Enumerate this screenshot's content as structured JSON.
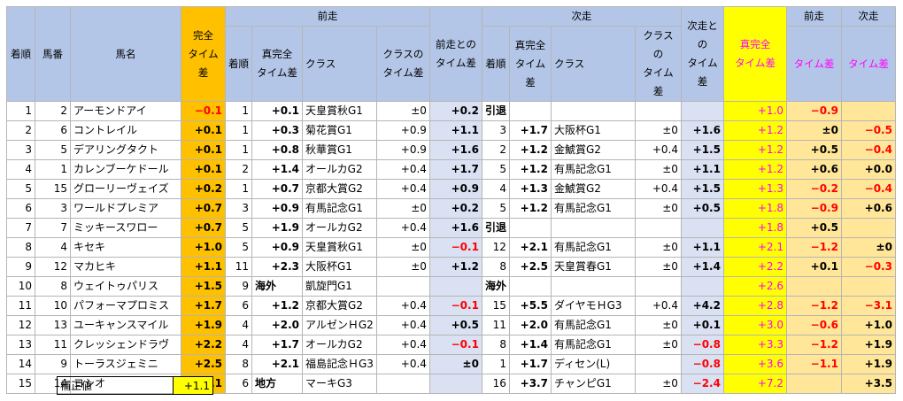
{
  "header": {
    "chakujun": "着順",
    "umaban": "馬番",
    "bamei": "馬名",
    "kanzen": "完全\nタイム差",
    "zenso": "前走",
    "zenso_diff": "前走との\nタイム差",
    "jiso": "次走",
    "jiso_diff": "次走との\nタイム差",
    "shinkanzen": "真完全\nタイム差",
    "zenso2": "前走",
    "jiso2": "次走",
    "sub_chakujun": "着順",
    "sub_shinkanzen": "真完全\nタイム差",
    "sub_class": "クラス",
    "sub_classdiff": "クラスの\nタイム差",
    "sub_timediff": "タイム差"
  },
  "rows": [
    {
      "rank": "1",
      "num": "2",
      "name": "アーモンドアイ",
      "kanzen": "−0.1",
      "zr": "1",
      "zs": "+0.1",
      "zc": "天皇賞秋G1",
      "zcd": "±0",
      "zd": "+0.2",
      "jr": "引退",
      "js": "",
      "jc": "",
      "jcd": "",
      "jd": "",
      "sk": "+1.0",
      "t1": "−0.9",
      "t2": ""
    },
    {
      "rank": "2",
      "num": "6",
      "name": "コントレイル",
      "kanzen": "+0.1",
      "zr": "1",
      "zs": "+0.3",
      "zc": "菊花賞G1",
      "zcd": "+0.9",
      "zd": "+1.1",
      "jr": "3",
      "js": "+1.7",
      "jc": "大阪杯G1",
      "jcd": "±0",
      "jd": "+1.6",
      "sk": "+1.2",
      "t1": "±0",
      "t2": "−0.5"
    },
    {
      "rank": "3",
      "num": "5",
      "name": "デアリングタクト",
      "kanzen": "+0.1",
      "zr": "1",
      "zs": "+0.8",
      "zc": "秋華賞G1",
      "zcd": "+0.9",
      "zd": "+1.6",
      "jr": "2",
      "js": "+1.2",
      "jc": "金鯱賞G2",
      "jcd": "+0.4",
      "jd": "+1.5",
      "sk": "+1.2",
      "t1": "+0.5",
      "t2": "−0.4"
    },
    {
      "rank": "4",
      "num": "1",
      "name": "カレンブーケドール",
      "kanzen": "+0.1",
      "zr": "2",
      "zs": "+1.4",
      "zc": "オールカG2",
      "zcd": "+0.4",
      "zd": "+1.7",
      "jr": "5",
      "js": "+1.2",
      "jc": "有馬記念G1",
      "jcd": "±0",
      "jd": "+1.1",
      "sk": "+1.2",
      "t1": "+0.6",
      "t2": "+0.0"
    },
    {
      "rank": "5",
      "num": "15",
      "name": "グローリーヴェイズ",
      "kanzen": "+0.2",
      "zr": "1",
      "zs": "+0.7",
      "zc": "京都大賞G2",
      "zcd": "+0.4",
      "zd": "+0.9",
      "jr": "4",
      "js": "+1.3",
      "jc": "金鯱賞G2",
      "jcd": "+0.4",
      "jd": "+1.5",
      "sk": "+1.3",
      "t1": "−0.2",
      "t2": "−0.4"
    },
    {
      "rank": "6",
      "num": "3",
      "name": "ワールドプレミア",
      "kanzen": "+0.7",
      "zr": "3",
      "zs": "+0.9",
      "zc": "有馬記念G1",
      "zcd": "±0",
      "zd": "+0.2",
      "jr": "5",
      "js": "+1.2",
      "jc": "有馬記念G1",
      "jcd": "±0",
      "jd": "+0.5",
      "sk": "+1.8",
      "t1": "−0.9",
      "t2": "+0.6"
    },
    {
      "rank": "7",
      "num": "7",
      "name": "ミッキースワロー",
      "kanzen": "+0.7",
      "zr": "5",
      "zs": "+1.9",
      "zc": "オールカG2",
      "zcd": "+0.4",
      "zd": "+1.6",
      "jr": "引退",
      "js": "",
      "jc": "",
      "jcd": "",
      "jd": "",
      "sk": "+1.8",
      "t1": "+0.5",
      "t2": ""
    },
    {
      "rank": "8",
      "num": "4",
      "name": "キセキ",
      "kanzen": "+1.0",
      "zr": "5",
      "zs": "+0.9",
      "zc": "天皇賞秋G1",
      "zcd": "±0",
      "zd": "−0.1",
      "jr": "12",
      "js": "+2.1",
      "jc": "有馬記念G1",
      "jcd": "±0",
      "jd": "+1.1",
      "sk": "+2.1",
      "t1": "−1.2",
      "t2": "±0"
    },
    {
      "rank": "9",
      "num": "12",
      "name": "マカヒキ",
      "kanzen": "+1.1",
      "zr": "11",
      "zs": "+2.3",
      "zc": "大阪杯G1",
      "zcd": "±0",
      "zd": "+1.2",
      "jr": "8",
      "js": "+2.5",
      "jc": "天皇賞春G1",
      "jcd": "±0",
      "jd": "+1.4",
      "sk": "+2.2",
      "t1": "+0.1",
      "t2": "−0.3"
    },
    {
      "rank": "10",
      "num": "8",
      "name": "ウェイトゥパリス",
      "kanzen": "+1.5",
      "zr": "9",
      "zs": "海外",
      "zc": "凱旋門G1",
      "zcd": "",
      "zd": "",
      "jr": "海外",
      "js": "",
      "jc": "",
      "jcd": "",
      "jd": "",
      "sk": "+2.6",
      "t1": "",
      "t2": ""
    },
    {
      "rank": "11",
      "num": "10",
      "name": "パフォーマプロミス",
      "kanzen": "+1.7",
      "zr": "6",
      "zs": "+1.2",
      "zc": "京都大賞G2",
      "zcd": "+0.4",
      "zd": "−0.1",
      "jr": "15",
      "js": "+5.5",
      "jc": "ダイヤモＨG3",
      "jcd": "+0.4",
      "jd": "+4.2",
      "sk": "+2.8",
      "t1": "−1.2",
      "t2": "−3.1"
    },
    {
      "rank": "12",
      "num": "13",
      "name": "ユーキャンスマイル",
      "kanzen": "+1.9",
      "zr": "4",
      "zs": "+2.0",
      "zc": "アルゼンＨG2",
      "zcd": "+0.4",
      "zd": "+0.5",
      "jr": "11",
      "js": "+2.0",
      "jc": "有馬記念G1",
      "jcd": "±0",
      "jd": "+0.1",
      "sk": "+3.0",
      "t1": "−0.6",
      "t2": "+1.0"
    },
    {
      "rank": "13",
      "num": "11",
      "name": "クレッシェンドラヴ",
      "kanzen": "+2.2",
      "zr": "4",
      "zs": "+1.7",
      "zc": "オールカG2",
      "zcd": "+0.4",
      "zd": "−0.1",
      "jr": "8",
      "js": "+1.4",
      "jc": "有馬記念G1",
      "jcd": "±0",
      "jd": "−0.8",
      "sk": "+3.3",
      "t1": "−1.2",
      "t2": "+1.9"
    },
    {
      "rank": "14",
      "num": "9",
      "name": "トーラスジェミニ",
      "kanzen": "+2.5",
      "zr": "8",
      "zs": "+2.1",
      "zc": "福島記念ＨG3",
      "zcd": "+0.4",
      "zd": "±0",
      "jr": "1",
      "js": "+1.7",
      "jc": "ディセン(L)",
      "jcd": "",
      "jd": "−0.8",
      "sk": "+3.6",
      "t1": "−1.1",
      "t2": "+1.9"
    },
    {
      "rank": "15",
      "num": "14",
      "name": "ヨシオ",
      "kanzen": "+6.1",
      "zr": "6",
      "zs": "地方",
      "zc": "マーキG3",
      "zcd": "",
      "zd": "",
      "jr": "16",
      "js": "+3.7",
      "jc": "チャンピG1",
      "jcd": "±0",
      "jd": "−2.4",
      "sk": "+7.2",
      "t1": "",
      "t2": "+3.5"
    }
  ],
  "correction": {
    "label": "補正値",
    "value": "+1.1"
  }
}
